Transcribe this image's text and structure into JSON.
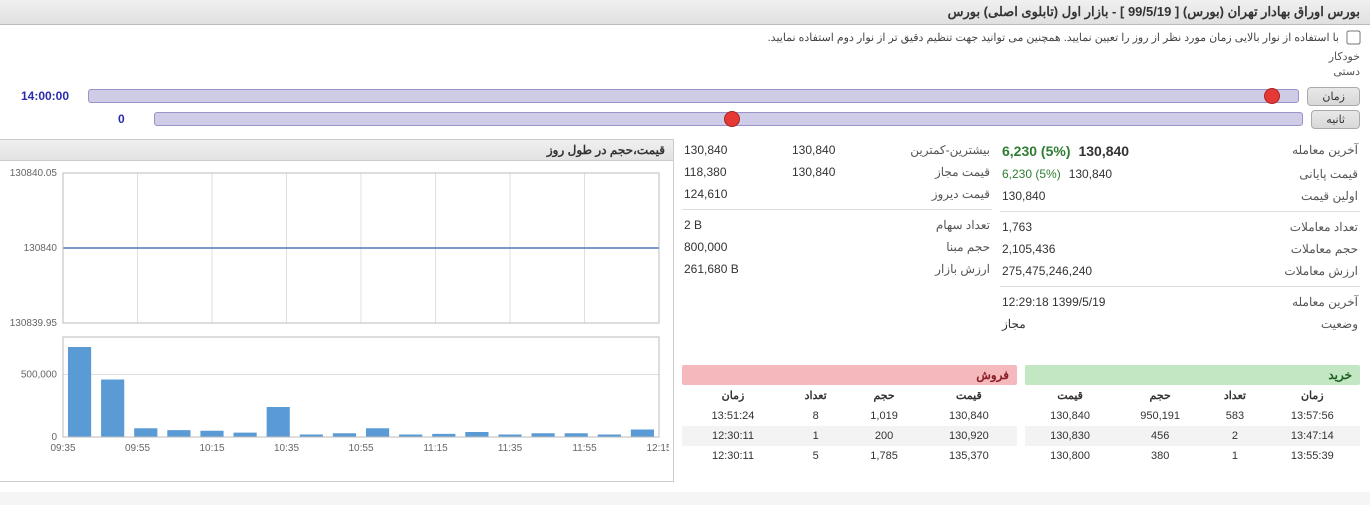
{
  "title": "بورس اوراق بهادار تهران (بورس) [ 99/5/19 ] - بازار اول (تابلوی اصلی) بورس",
  "help_text": "با استفاده از نوار بالایی زمان مورد نظر از روز را تعیین نمایید. همچنین می توانید جهت تنظیم دقیق تر از نوار دوم استفاده نمایید.",
  "mode": {
    "auto": "خودکار",
    "manual": "دستی"
  },
  "sliders": {
    "time": {
      "label": "زمان",
      "value": "14:00:00",
      "thumb_percent": 1.5
    },
    "second": {
      "label": "ثانیه",
      "value": "0",
      "thumb_percent": 49
    }
  },
  "left_info": {
    "rows": [
      {
        "label": "آخرین معامله",
        "value": "130,840",
        "extra": "6,230  (5%)",
        "bold": true,
        "green_extra": true
      },
      {
        "label": "قیمت پایانی",
        "value": "130,840",
        "extra": "6,230  (5%)",
        "green_extra": true
      },
      {
        "label": "اولین قیمت",
        "value": "130,840"
      }
    ],
    "rows2": [
      {
        "label": "تعداد معاملات",
        "value": "1,763"
      },
      {
        "label": "حجم معاملات",
        "value": "2,105,436"
      },
      {
        "label": "ارزش معاملات",
        "value": "275,475,246,240"
      }
    ],
    "rows3": [
      {
        "label": "آخرین معامله",
        "value": "12:29:18 1399/5/19"
      },
      {
        "label": "وضعیت",
        "value": "مجاز"
      }
    ]
  },
  "range_info": {
    "rows": [
      {
        "label": "بیشترین-کمترین",
        "v1": "130,840",
        "v2": "130,840"
      },
      {
        "label": "قیمت مجاز",
        "v1": "130,840",
        "v2": "118,380"
      },
      {
        "label": "قیمت دیروز",
        "v1": "124,610"
      }
    ],
    "rows2": [
      {
        "label": "تعداد سهام",
        "v1": "2 B"
      },
      {
        "label": "حجم مبنا",
        "v1": "800,000"
      },
      {
        "label": "ارزش بازار",
        "v1": "261,680 B"
      }
    ]
  },
  "buy": {
    "title": "خرید",
    "columns": [
      "زمان",
      "تعداد",
      "حجم",
      "قیمت"
    ],
    "rows": [
      [
        "13:57:56",
        "583",
        "950,191",
        "130,840"
      ],
      [
        "13:47:14",
        "2",
        "456",
        "130,830"
      ],
      [
        "13:55:39",
        "1",
        "380",
        "130,800"
      ]
    ]
  },
  "sell": {
    "title": "فروش",
    "columns": [
      "قیمت",
      "حجم",
      "تعداد",
      "زمان"
    ],
    "rows": [
      [
        "130,840",
        "1,019",
        "8",
        "13:51:24"
      ],
      [
        "130,920",
        "200",
        "1",
        "12:30:11"
      ],
      [
        "135,370",
        "1,785",
        "5",
        "12:30:11"
      ]
    ]
  },
  "chart": {
    "title": "قیمت،حجم در طول روز",
    "price": {
      "y_labels": [
        "130840.05",
        "130840",
        "130839.95"
      ],
      "value": 130840,
      "ymin": 130839.93,
      "ymax": 130840.07
    },
    "volume": {
      "y_labels": [
        "500,000",
        "0"
      ],
      "ymax": 800000,
      "x_labels": [
        "09:35",
        "09:55",
        "10:15",
        "10:35",
        "10:55",
        "11:15",
        "11:35",
        "11:55",
        "12:15"
      ],
      "bars": [
        720000,
        460000,
        70000,
        55000,
        50000,
        35000,
        240000,
        20000,
        30000,
        70000,
        20000,
        25000,
        40000,
        20000,
        30000,
        30000,
        20000,
        60000
      ]
    },
    "colors": {
      "bar": "#5b9bd5",
      "line": "#4a7ab8",
      "grid": "#e0e0e0"
    }
  }
}
